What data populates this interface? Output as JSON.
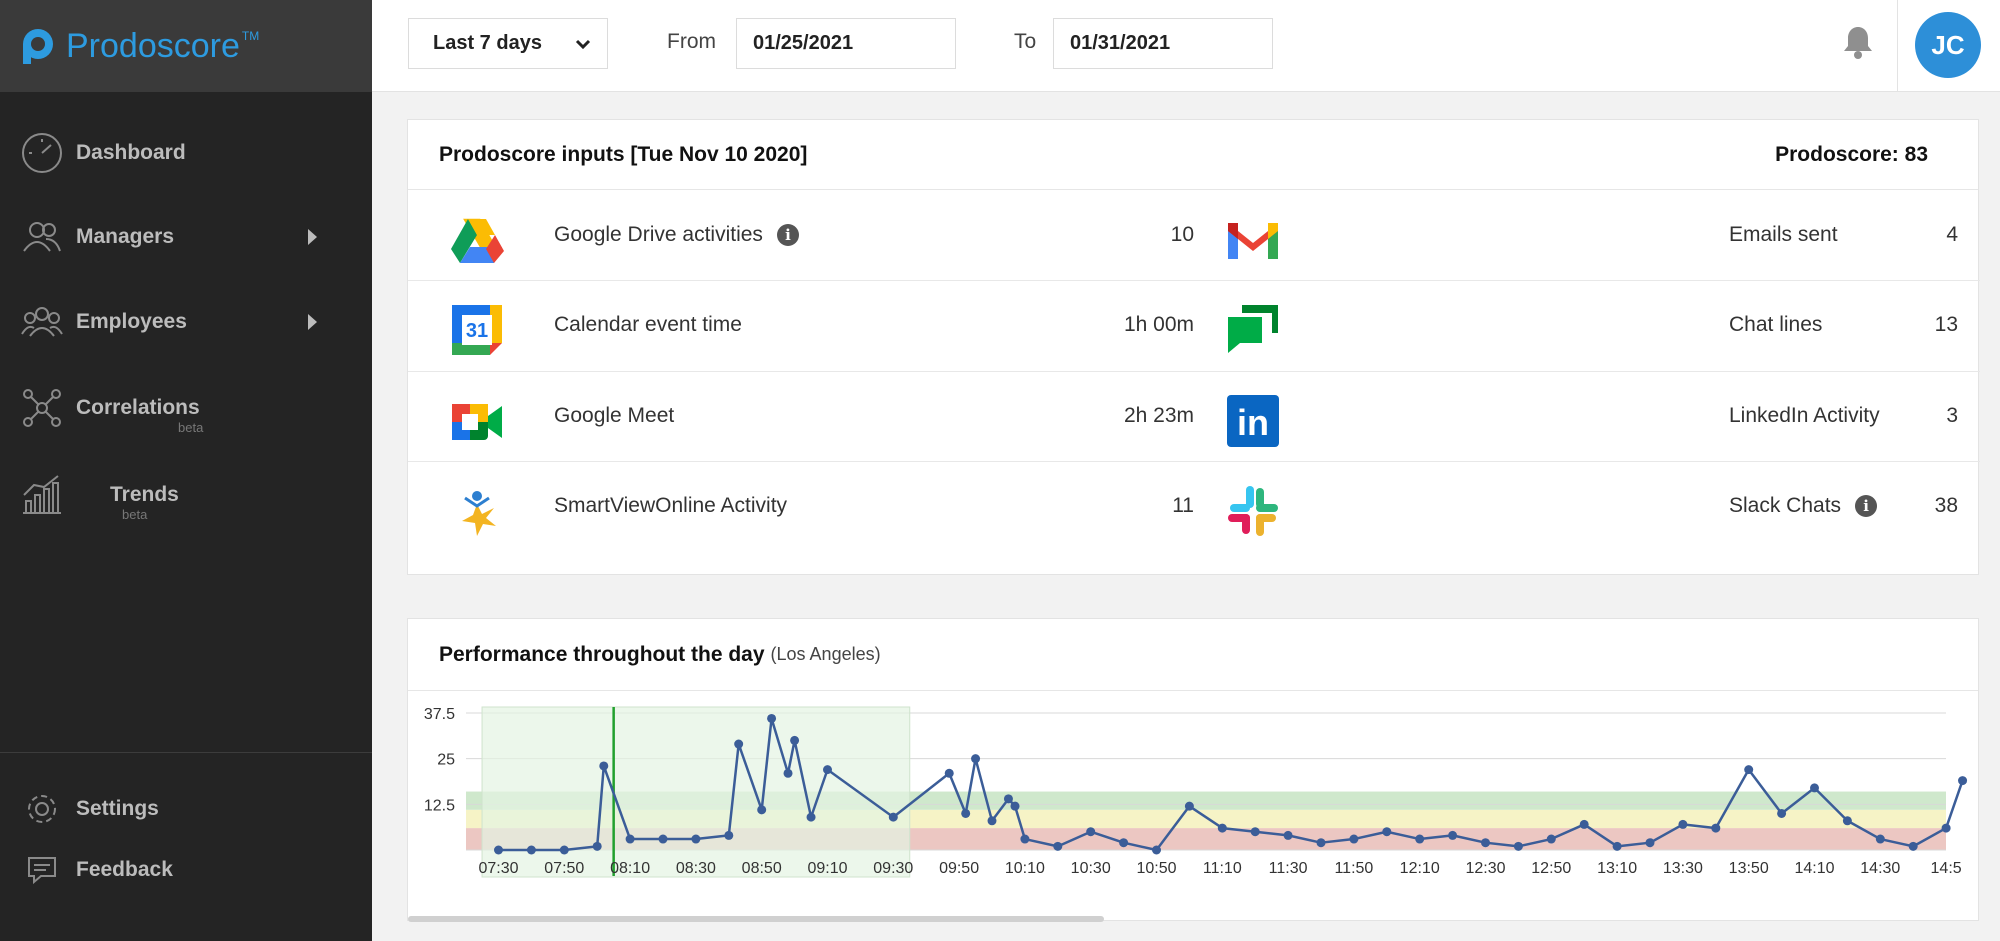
{
  "brand": {
    "name": "Prodoscore",
    "tm": "TM"
  },
  "nav": {
    "items": [
      {
        "label": "Dashboard",
        "icon": "gauge-icon"
      },
      {
        "label": "Managers",
        "icon": "managers-icon"
      },
      {
        "label": "Employees",
        "icon": "employees-icon"
      },
      {
        "label": "Correlations",
        "badge": "beta",
        "icon": "correlations-icon"
      },
      {
        "label": "Trends",
        "badge": "beta",
        "icon": "trends-icon"
      }
    ],
    "bottom": [
      {
        "label": "Settings",
        "icon": "gear-icon"
      },
      {
        "label": "Feedback",
        "icon": "feedback-icon"
      }
    ]
  },
  "header": {
    "period": "Last 7 days",
    "from_label": "From",
    "from_value": "01/25/2021",
    "to_label": "To",
    "to_value": "01/31/2021",
    "avatar_initials": "JC"
  },
  "inputs_card": {
    "title": "Prodoscore inputs [Tue Nov 10 2020]",
    "score_text": "Prodoscore: 83",
    "left": [
      {
        "label": "Google Drive activities",
        "value": "10",
        "info": true,
        "icon": "google-drive-icon"
      },
      {
        "label": "Calendar event time",
        "value": "1h 00m",
        "info": false,
        "icon": "google-calendar-icon",
        "icon_text": "31"
      },
      {
        "label": "Google Meet",
        "value": "2h 23m",
        "info": false,
        "icon": "google-meet-icon"
      },
      {
        "label": "SmartViewOnline Activity",
        "value": "11",
        "info": false,
        "icon": "smartview-icon"
      }
    ],
    "right": [
      {
        "label": "Emails sent",
        "value": "4",
        "info": false,
        "icon": "gmail-icon"
      },
      {
        "label": "Chat lines",
        "value": "13",
        "info": false,
        "icon": "google-chat-icon"
      },
      {
        "label": "LinkedIn Activity",
        "value": "3",
        "info": false,
        "icon": "linkedin-icon",
        "icon_text": "in"
      },
      {
        "label": "Slack Chats",
        "value": "38",
        "info": true,
        "icon": "slack-icon"
      }
    ],
    "info_glyph": "i"
  },
  "chart_card": {
    "title": "Performance throughout the day",
    "subtitle": "(Los Angeles)"
  },
  "chart_data": {
    "type": "line",
    "title": "Performance throughout the day",
    "ylim": [
      0,
      37.5
    ],
    "yticks": [
      "37.5",
      "25",
      "12.5"
    ],
    "xticks": [
      "07:30",
      "07:50",
      "08:10",
      "08:30",
      "08:50",
      "09:10",
      "09:30",
      "09:50",
      "10:10",
      "10:30",
      "10:50",
      "11:10",
      "11:30",
      "11:50",
      "12:10",
      "12:30",
      "12:50",
      "13:10",
      "13:30",
      "13:50",
      "14:10",
      "14:30",
      "14:5"
    ],
    "x": [
      "07:30",
      "07:40",
      "07:50",
      "08:00",
      "08:02",
      "08:10",
      "08:20",
      "08:30",
      "08:40",
      "08:43",
      "08:50",
      "08:53",
      "08:58",
      "09:00",
      "09:05",
      "09:10",
      "09:30",
      "09:47",
      "09:52",
      "09:55",
      "10:00",
      "10:05",
      "10:07",
      "10:10",
      "10:20",
      "10:30",
      "10:40",
      "10:50",
      "11:00",
      "11:10",
      "11:20",
      "11:30",
      "11:40",
      "11:50",
      "12:00",
      "12:10",
      "12:20",
      "12:30",
      "12:40",
      "12:50",
      "13:00",
      "13:10",
      "13:20",
      "13:30",
      "13:40",
      "13:50",
      "14:00",
      "14:10",
      "14:20",
      "14:30",
      "14:40",
      "14:50",
      "14:55"
    ],
    "values": [
      0,
      0,
      0,
      1,
      23,
      3,
      3,
      3,
      4,
      29,
      11,
      36,
      21,
      30,
      9,
      22,
      9,
      21,
      10,
      25,
      8,
      14,
      12,
      3,
      1,
      5,
      2,
      0,
      12,
      6,
      5,
      4,
      2,
      3,
      5,
      3,
      4,
      2,
      1,
      3,
      7,
      1,
      2,
      7,
      6,
      22,
      10,
      17,
      8,
      3,
      1,
      6,
      19
    ],
    "bands": [
      {
        "name": "red",
        "from": 0,
        "to": 6,
        "color": "#ecc7c2"
      },
      {
        "name": "yellow",
        "from": 6,
        "to": 11,
        "color": "#f6f3c6"
      },
      {
        "name": "green",
        "from": 11,
        "to": 16,
        "color": "#cfe8cc"
      }
    ],
    "highlight_window": {
      "from": "07:25",
      "to": "09:35",
      "color": "#e4f3e2"
    },
    "marker": "08:05",
    "line_color": "#3b5d98",
    "marker_color": "#22a02e",
    "grid": true
  }
}
